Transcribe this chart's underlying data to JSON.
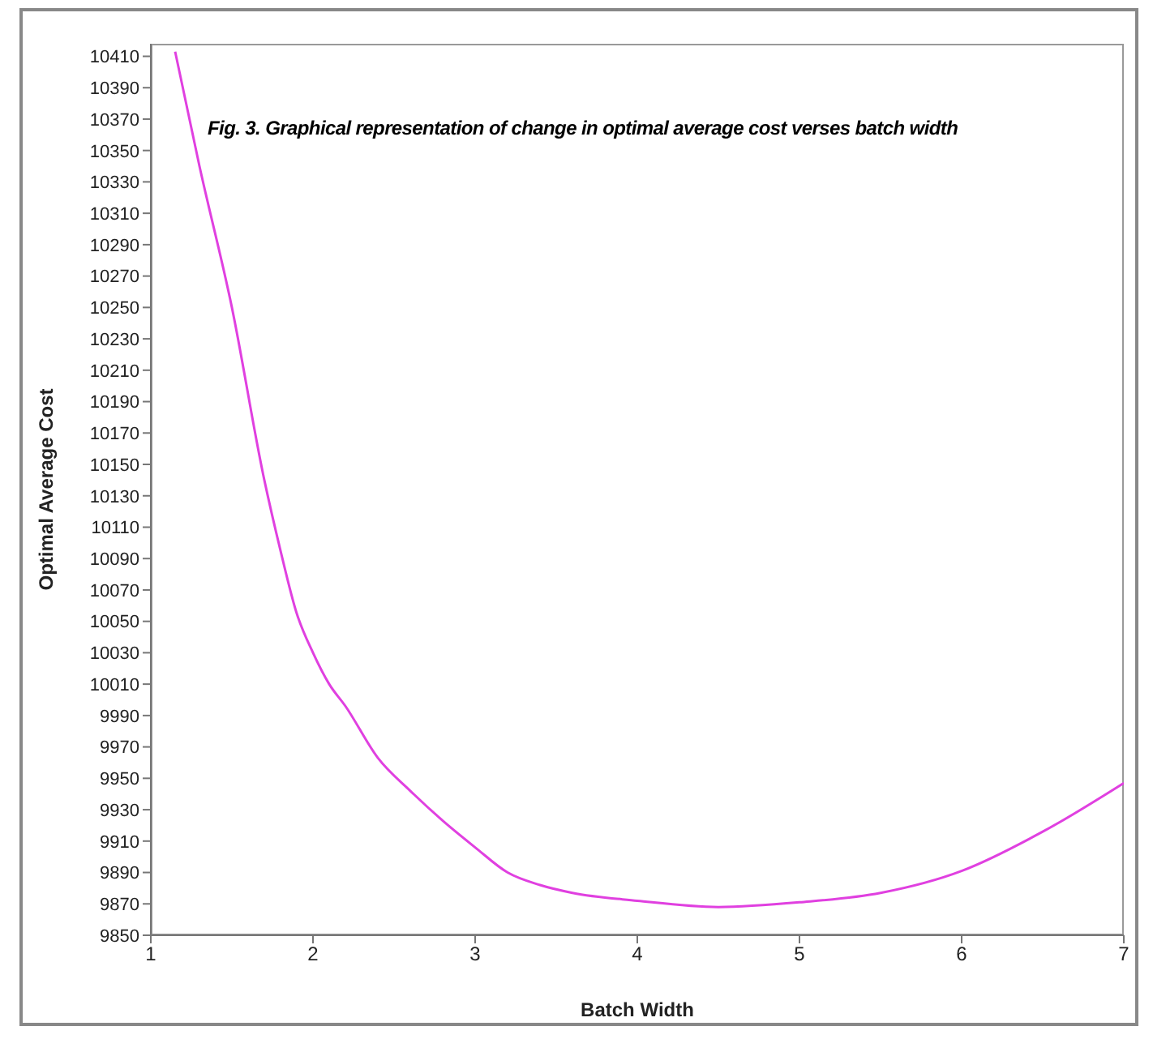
{
  "chart_data": {
    "type": "line",
    "title": "Fig. 3. Graphical representation of change in optimal average cost verses batch width",
    "xlabel": "Batch Width",
    "ylabel": "Optimal Average Cost",
    "series": [
      {
        "color": "#e040e0",
        "x": [
          1.15,
          1.3,
          1.5,
          1.7,
          1.8,
          1.9,
          2,
          2.1,
          2.2,
          2.4,
          2.6,
          2.8,
          3,
          3.2,
          3.4,
          3.6,
          4,
          4.5,
          5,
          5.5,
          6,
          6.5,
          7
        ],
        "values": [
          10413,
          10340,
          10250,
          10140,
          10095,
          10055,
          10030,
          10010,
          9996,
          9963,
          9942,
          9923,
          9906,
          9890,
          9882,
          9877,
          9872,
          9868,
          9871,
          9877,
          9891,
          9916,
          9947
        ]
      }
    ],
    "xlim": [
      1,
      7
    ],
    "xticks": [
      1,
      2,
      3,
      4,
      5,
      6,
      7
    ],
    "ylim": [
      9850,
      10418
    ],
    "yticks": [
      9850,
      9870,
      9890,
      9910,
      9930,
      9950,
      9970,
      9990,
      10010,
      10030,
      10050,
      10070,
      10090,
      10110,
      10130,
      10150,
      10170,
      10190,
      10210,
      10230,
      10250,
      10270,
      10290,
      10310,
      10330,
      10350,
      10370,
      10390,
      10410
    ],
    "grid": false,
    "legend": false,
    "marker": "none",
    "line_style": "solid"
  }
}
